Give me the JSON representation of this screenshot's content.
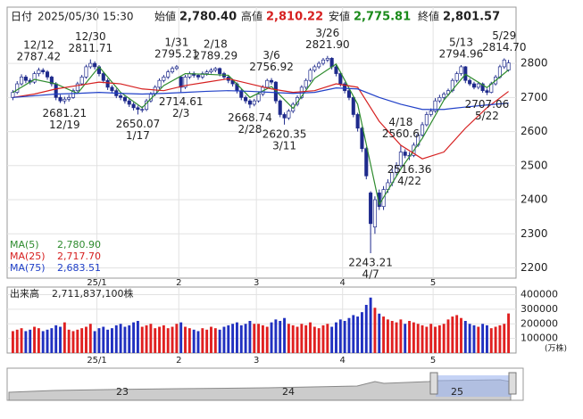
{
  "header": {
    "date_label": "日付",
    "date": "2025/05/30 15:30",
    "open_label": "始値",
    "open": "2,780.40",
    "high_label": "高値",
    "high": "2,810.22",
    "low_label": "安値",
    "low": "2,775.81",
    "close_label": "終値",
    "close": "2,801.57"
  },
  "chart_data": [
    {
      "type": "candlestick",
      "ylim": [
        2170,
        2965
      ],
      "yticks": [
        2200,
        2300,
        2400,
        2500,
        2600,
        2700,
        2800
      ],
      "grid": true,
      "up_color": "#ffffff",
      "down_color": "#1e2a8c",
      "month_ticks": [
        {
          "value": 20,
          "label": "25/1"
        },
        {
          "value": 39,
          "label": "2"
        },
        {
          "value": 57,
          "label": "3"
        },
        {
          "value": 77,
          "label": "4"
        },
        {
          "value": 98,
          "label": "5"
        }
      ],
      "open": [
        2700,
        2715,
        2740,
        2760,
        2750,
        2745,
        2770,
        2780,
        2775,
        2760,
        2740,
        2700,
        2690,
        2695,
        2700,
        2720,
        2740,
        2760,
        2790,
        2800,
        2790,
        2770,
        2750,
        2730,
        2720,
        2705,
        2700,
        2690,
        2680,
        2670,
        2665,
        2665,
        2690,
        2710,
        2730,
        2750,
        2760,
        2775,
        2785,
        2760,
        2730,
        2760,
        2770,
        2765,
        2760,
        2770,
        2775,
        2780,
        2785,
        2770,
        2760,
        2750,
        2740,
        2720,
        2700,
        2690,
        2680,
        2690,
        2710,
        2730,
        2750,
        2745,
        2690,
        2650,
        2640,
        2660,
        2680,
        2700,
        2730,
        2750,
        2780,
        2790,
        2800,
        2810,
        2815,
        2790,
        2770,
        2740,
        2720,
        2700,
        2650,
        2610,
        2550,
        2420,
        2320,
        2420,
        2380,
        2430,
        2450,
        2480,
        2500,
        2540,
        2530,
        2530,
        2560,
        2590,
        2620,
        2650,
        2660,
        2690,
        2700,
        2710,
        2720,
        2750,
        2770,
        2790,
        2750,
        2740,
        2730,
        2740,
        2720,
        2715,
        2740,
        2760,
        2790,
        2780.4
      ],
      "high": [
        2722,
        2748,
        2768,
        2766,
        2756,
        2776,
        2787.42,
        2786,
        2780,
        2764,
        2745,
        2708,
        2702,
        2708,
        2726,
        2746,
        2766,
        2796,
        2811.71,
        2806,
        2795,
        2776,
        2756,
        2736,
        2726,
        2712,
        2706,
        2696,
        2686,
        2676,
        2674,
        2696,
        2716,
        2736,
        2756,
        2766,
        2781,
        2791,
        2795.21,
        2762,
        2766,
        2776,
        2776,
        2770,
        2776,
        2781,
        2786,
        2789.29,
        2788,
        2775,
        2765,
        2755,
        2744,
        2725,
        2706,
        2695,
        2696,
        2716,
        2736,
        2755,
        2756.92,
        2748,
        2694,
        2656,
        2666,
        2686,
        2706,
        2736,
        2756,
        2786,
        2796,
        2806,
        2816,
        2821.9,
        2818,
        2795,
        2774,
        2745,
        2725,
        2704,
        2655,
        2614,
        2555,
        2425,
        2410,
        2430,
        2440,
        2460,
        2490,
        2510,
        2560.6,
        2548,
        2540,
        2568,
        2598,
        2628,
        2658,
        2668,
        2698,
        2708,
        2716,
        2726,
        2756,
        2776,
        2794.96,
        2792,
        2756,
        2746,
        2746,
        2744,
        2726,
        2746,
        2766,
        2796,
        2814.7,
        2810.22
      ],
      "low": [
        2692,
        2710,
        2735,
        2742,
        2738,
        2740,
        2762,
        2768,
        2752,
        2732,
        2692,
        2684,
        2681.21,
        2688,
        2696,
        2715,
        2735,
        2755,
        2784,
        2782,
        2762,
        2742,
        2722,
        2712,
        2698,
        2692,
        2682,
        2672,
        2662,
        2650.07,
        2656,
        2660,
        2685,
        2704,
        2725,
        2744,
        2754,
        2770,
        2780,
        2714.61,
        2725,
        2754,
        2758,
        2752,
        2754,
        2764,
        2770,
        2774,
        2762,
        2752,
        2742,
        2732,
        2712,
        2692,
        2682,
        2668.74,
        2674,
        2685,
        2704,
        2725,
        2738,
        2682,
        2642,
        2620.35,
        2634,
        2654,
        2674,
        2695,
        2724,
        2745,
        2774,
        2784,
        2794,
        2804,
        2782,
        2762,
        2732,
        2712,
        2692,
        2642,
        2600,
        2540,
        2460,
        2243.21,
        2300,
        2370,
        2370,
        2420,
        2440,
        2470,
        2495,
        2522,
        2516.36,
        2525,
        2555,
        2585,
        2615,
        2644,
        2655,
        2684,
        2694,
        2704,
        2715,
        2744,
        2764,
        2742,
        2734,
        2724,
        2724,
        2714,
        2707.06,
        2712,
        2735,
        2755,
        2784,
        2775.81
      ],
      "close": [
        2715,
        2740,
        2760,
        2750,
        2745,
        2770,
        2780,
        2775,
        2760,
        2740,
        2700,
        2690,
        2695,
        2700,
        2720,
        2740,
        2760,
        2790,
        2800,
        2790,
        2770,
        2750,
        2730,
        2720,
        2705,
        2700,
        2690,
        2680,
        2670,
        2665,
        2665,
        2690,
        2710,
        2730,
        2750,
        2760,
        2775,
        2785,
        2790,
        2730,
        2760,
        2770,
        2765,
        2760,
        2770,
        2775,
        2780,
        2785,
        2770,
        2760,
        2750,
        2740,
        2720,
        2700,
        2690,
        2680,
        2690,
        2710,
        2730,
        2750,
        2745,
        2690,
        2650,
        2640,
        2660,
        2680,
        2700,
        2730,
        2750,
        2780,
        2790,
        2800,
        2810,
        2815,
        2790,
        2770,
        2740,
        2720,
        2700,
        2650,
        2610,
        2550,
        2470,
        2330,
        2400,
        2380,
        2430,
        2450,
        2480,
        2500,
        2540,
        2530,
        2530,
        2560,
        2590,
        2620,
        2650,
        2660,
        2690,
        2700,
        2710,
        2720,
        2750,
        2770,
        2790,
        2750,
        2740,
        2730,
        2740,
        2720,
        2715,
        2740,
        2760,
        2790,
        2810,
        2801.57
      ],
      "series": [
        {
          "name": "MA(5)",
          "last_label": "2,780.90",
          "color": "#2e8b2e",
          "x": [
            0,
            5,
            10,
            15,
            20,
            25,
            30,
            35,
            40,
            45,
            50,
            55,
            60,
            65,
            70,
            75,
            80,
            85,
            90,
            95,
            100,
            105,
            110,
            115
          ],
          "values": [
            2715,
            2753,
            2740,
            2712,
            2790,
            2715,
            2670,
            2735,
            2770,
            2768,
            2765,
            2700,
            2732,
            2668,
            2756,
            2798,
            2680,
            2386,
            2490,
            2580,
            2692,
            2768,
            2729,
            2780.9
          ]
        },
        {
          "name": "MA(25)",
          "last_label": "2,717.70",
          "color": "#d62020",
          "x": [
            0,
            5,
            10,
            15,
            20,
            25,
            30,
            35,
            40,
            45,
            50,
            55,
            60,
            65,
            70,
            75,
            80,
            85,
            90,
            95,
            100,
            105,
            110,
            115
          ],
          "values": [
            2700,
            2710,
            2725,
            2735,
            2745,
            2740,
            2725,
            2720,
            2735,
            2745,
            2755,
            2740,
            2725,
            2715,
            2720,
            2740,
            2730,
            2630,
            2560,
            2520,
            2540,
            2610,
            2670,
            2717.7
          ]
        },
        {
          "name": "MA(75)",
          "last_label": "2,683.51",
          "color": "#2040c8",
          "x": [
            0,
            5,
            10,
            15,
            20,
            25,
            30,
            35,
            40,
            45,
            50,
            55,
            60,
            65,
            70,
            75,
            80,
            85,
            90,
            95,
            100,
            105,
            110,
            115
          ],
          "values": [
            2700,
            2705,
            2710,
            2712,
            2715,
            2712,
            2710,
            2712,
            2715,
            2718,
            2720,
            2718,
            2715,
            2712,
            2715,
            2728,
            2725,
            2700,
            2680,
            2665,
            2665,
            2672,
            2678,
            2683.51
          ]
        }
      ],
      "annotations": [
        {
          "date": "12/12",
          "value": 2787.42,
          "side": "high"
        },
        {
          "date": "12/19",
          "value": 2681.21,
          "side": "low"
        },
        {
          "date": "12/30",
          "value": 2811.71,
          "side": "high"
        },
        {
          "date": "1/17",
          "value": 2650.07,
          "side": "low"
        },
        {
          "date": "1/31",
          "value": 2795.21,
          "side": "high"
        },
        {
          "date": "2/3",
          "value": 2714.61,
          "side": "low"
        },
        {
          "date": "2/18",
          "value": 2789.29,
          "side": "high"
        },
        {
          "date": "2/28",
          "value": 2668.74,
          "side": "low"
        },
        {
          "date": "3/6",
          "value": 2756.92,
          "side": "high"
        },
        {
          "date": "3/11",
          "value": 2620.35,
          "side": "low"
        },
        {
          "date": "3/26",
          "value": 2821.9,
          "label": "2821.90",
          "side": "high"
        },
        {
          "date": "4/7",
          "value": 2243.21,
          "side": "low"
        },
        {
          "date": "4/18",
          "value": 2560.6,
          "side": "high"
        },
        {
          "date": "4/22",
          "value": 2516.36,
          "side": "low"
        },
        {
          "date": "5/13",
          "value": 2794.96,
          "side": "high"
        },
        {
          "date": "5/22",
          "value": 2707.06,
          "side": "low"
        },
        {
          "date": "5/29",
          "value": 2814.7,
          "label": "2814.70",
          "side": "high"
        }
      ]
    },
    {
      "type": "volume",
      "title": "出来高",
      "total": "2,711,837,100株",
      "unit": "(万株)",
      "ylim": [
        0,
        452000
      ],
      "yticks": [
        100000,
        200000,
        300000,
        400000
      ],
      "up_color": "#e02020",
      "down_color": "#2030c0",
      "values": [
        150000,
        160000,
        170000,
        150000,
        160000,
        180000,
        170000,
        150000,
        160000,
        170000,
        190000,
        180000,
        210000,
        160000,
        150000,
        160000,
        170000,
        180000,
        200000,
        150000,
        170000,
        180000,
        160000,
        170000,
        190000,
        200000,
        180000,
        190000,
        210000,
        220000,
        180000,
        190000,
        200000,
        170000,
        180000,
        190000,
        170000,
        180000,
        200000,
        210000,
        180000,
        170000,
        160000,
        150000,
        170000,
        160000,
        180000,
        170000,
        160000,
        180000,
        190000,
        200000,
        210000,
        190000,
        200000,
        220000,
        200000,
        200000,
        190000,
        180000,
        210000,
        230000,
        220000,
        240000,
        200000,
        190000,
        180000,
        200000,
        190000,
        210000,
        180000,
        170000,
        190000,
        200000,
        180000,
        210000,
        230000,
        220000,
        240000,
        260000,
        250000,
        280000,
        330000,
        380000,
        310000,
        270000,
        250000,
        230000,
        220000,
        210000,
        230000,
        200000,
        220000,
        210000,
        200000,
        190000,
        180000,
        200000,
        180000,
        190000,
        200000,
        230000,
        250000,
        260000,
        240000,
        220000,
        200000,
        190000,
        180000,
        200000,
        190000,
        170000,
        180000,
        190000,
        200000,
        271184
      ]
    }
  ],
  "navigator": {
    "labels": [
      "23",
      "24",
      "25"
    ]
  }
}
